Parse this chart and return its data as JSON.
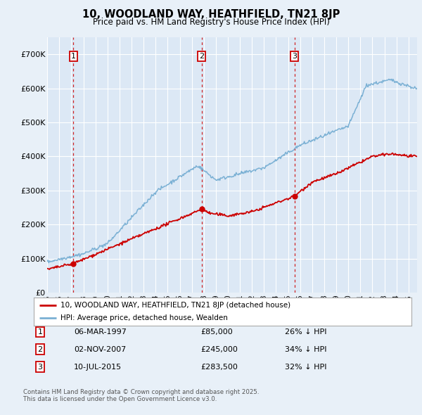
{
  "title": "10, WOODLAND WAY, HEATHFIELD, TN21 8JP",
  "subtitle": "Price paid vs. HM Land Registry's House Price Index (HPI)",
  "background_color": "#e8f0f8",
  "plot_bg_color": "#dce8f5",
  "grid_color": "#ffffff",
  "ylim": [
    0,
    750000
  ],
  "yticks": [
    0,
    100000,
    200000,
    300000,
    400000,
    500000,
    600000,
    700000
  ],
  "ytick_labels": [
    "£0",
    "£100K",
    "£200K",
    "£300K",
    "£400K",
    "£500K",
    "£600K",
    "£700K"
  ],
  "legend_entries": [
    "10, WOODLAND WAY, HEATHFIELD, TN21 8JP (detached house)",
    "HPI: Average price, detached house, Wealden"
  ],
  "legend_colors": [
    "#cc0000",
    "#7ab0d4"
  ],
  "transactions": [
    {
      "label": "1",
      "date": "06-MAR-1997",
      "price": 85000,
      "price_str": "£85,000",
      "pct": "26%",
      "x": 1997.17
    },
    {
      "label": "2",
      "date": "02-NOV-2007",
      "price": 245000,
      "price_str": "£245,000",
      "pct": "34%",
      "x": 2007.83
    },
    {
      "label": "3",
      "date": "10-JUL-2015",
      "price": 283500,
      "price_str": "£283,500",
      "pct": "32%",
      "x": 2015.52
    }
  ],
  "footer_line1": "Contains HM Land Registry data © Crown copyright and database right 2025.",
  "footer_line2": "This data is licensed under the Open Government Licence v3.0.",
  "hpi_color": "#7ab0d4",
  "price_color": "#cc0000",
  "dashed_color": "#cc0000",
  "xlim_start": 1995.0,
  "xlim_end": 2025.7
}
